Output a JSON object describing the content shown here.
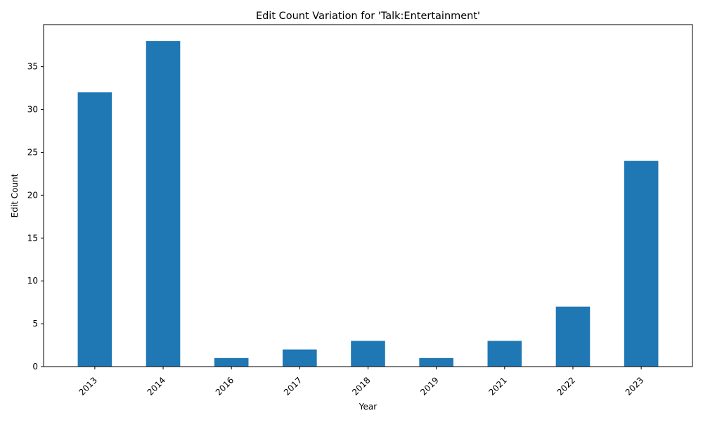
{
  "colors": {
    "bar": "#1f77b4",
    "axis": "#000000",
    "background": "#ffffff"
  },
  "chart_data": {
    "type": "bar",
    "title": "Edit Count Variation for 'Talk:Entertainment'",
    "xlabel": "Year",
    "ylabel": "Edit Count",
    "categories": [
      "2013",
      "2014",
      "2016",
      "2017",
      "2018",
      "2019",
      "2021",
      "2022",
      "2023"
    ],
    "values": [
      32,
      38,
      1,
      2,
      3,
      1,
      3,
      7,
      24
    ],
    "ylim": [
      0,
      39.9
    ],
    "yticks": [
      0,
      5,
      10,
      15,
      20,
      25,
      30,
      35
    ],
    "grid": false,
    "legend": "none"
  }
}
